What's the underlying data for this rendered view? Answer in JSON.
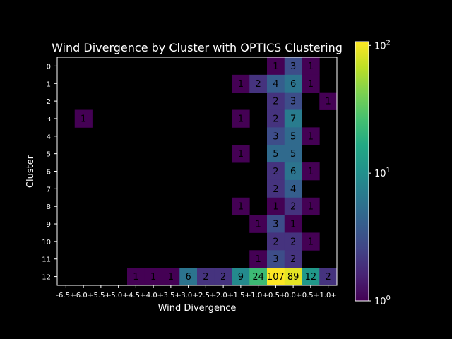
{
  "chart_data": {
    "type": "heatmap",
    "title": "Wind Divergence by Cluster with OPTICS Clustering",
    "xlabel": "Wind Divergence",
    "ylabel": "Cluster",
    "x_categories": [
      "-6.5+",
      "-6.0+",
      "-5.5+",
      "-5.0+",
      "-4.5+",
      "-4.0+",
      "-3.5+",
      "-3.0+",
      "-2.5+",
      "-2.0+",
      "-1.5+",
      "-1.0+",
      "-0.5+",
      "0.0+",
      "0.5+",
      "1.0+"
    ],
    "y_categories": [
      "0",
      "1",
      "2",
      "3",
      "4",
      "5",
      "6",
      "7",
      "8",
      "9",
      "10",
      "11",
      "12"
    ],
    "cells": [
      {
        "y": "0",
        "x": "-0.5+",
        "v": 1
      },
      {
        "y": "0",
        "x": "0.0+",
        "v": 3
      },
      {
        "y": "0",
        "x": "0.5+",
        "v": 1
      },
      {
        "y": "1",
        "x": "-1.5+",
        "v": 1
      },
      {
        "y": "1",
        "x": "-1.0+",
        "v": 2
      },
      {
        "y": "1",
        "x": "-0.5+",
        "v": 4
      },
      {
        "y": "1",
        "x": "0.0+",
        "v": 6
      },
      {
        "y": "1",
        "x": "0.5+",
        "v": 1
      },
      {
        "y": "2",
        "x": "-0.5+",
        "v": 2
      },
      {
        "y": "2",
        "x": "0.0+",
        "v": 3
      },
      {
        "y": "2",
        "x": "1.0+",
        "v": 1
      },
      {
        "y": "3",
        "x": "-6.0+",
        "v": 1
      },
      {
        "y": "3",
        "x": "-1.5+",
        "v": 1
      },
      {
        "y": "3",
        "x": "-0.5+",
        "v": 2
      },
      {
        "y": "3",
        "x": "0.0+",
        "v": 7
      },
      {
        "y": "4",
        "x": "-0.5+",
        "v": 3
      },
      {
        "y": "4",
        "x": "0.0+",
        "v": 5
      },
      {
        "y": "4",
        "x": "0.5+",
        "v": 1
      },
      {
        "y": "5",
        "x": "-1.5+",
        "v": 1
      },
      {
        "y": "5",
        "x": "-0.5+",
        "v": 5
      },
      {
        "y": "5",
        "x": "0.0+",
        "v": 5
      },
      {
        "y": "6",
        "x": "-0.5+",
        "v": 2
      },
      {
        "y": "6",
        "x": "0.0+",
        "v": 6
      },
      {
        "y": "6",
        "x": "0.5+",
        "v": 1
      },
      {
        "y": "7",
        "x": "-0.5+",
        "v": 2
      },
      {
        "y": "7",
        "x": "0.0+",
        "v": 4
      },
      {
        "y": "8",
        "x": "-1.5+",
        "v": 1
      },
      {
        "y": "8",
        "x": "-0.5+",
        "v": 1
      },
      {
        "y": "8",
        "x": "0.0+",
        "v": 2
      },
      {
        "y": "8",
        "x": "0.5+",
        "v": 1
      },
      {
        "y": "9",
        "x": "-1.0+",
        "v": 1
      },
      {
        "y": "9",
        "x": "-0.5+",
        "v": 3
      },
      {
        "y": "9",
        "x": "0.0+",
        "v": 1
      },
      {
        "y": "10",
        "x": "-0.5+",
        "v": 2
      },
      {
        "y": "10",
        "x": "0.0+",
        "v": 2
      },
      {
        "y": "10",
        "x": "0.5+",
        "v": 1
      },
      {
        "y": "11",
        "x": "-1.0+",
        "v": 1
      },
      {
        "y": "11",
        "x": "-0.5+",
        "v": 3
      },
      {
        "y": "11",
        "x": "0.0+",
        "v": 2
      },
      {
        "y": "12",
        "x": "-4.5+",
        "v": 1
      },
      {
        "y": "12",
        "x": "-4.0+",
        "v": 1
      },
      {
        "y": "12",
        "x": "-3.5+",
        "v": 1
      },
      {
        "y": "12",
        "x": "-3.0+",
        "v": 6
      },
      {
        "y": "12",
        "x": "-2.5+",
        "v": 2
      },
      {
        "y": "12",
        "x": "-2.0+",
        "v": 2
      },
      {
        "y": "12",
        "x": "-1.5+",
        "v": 9
      },
      {
        "y": "12",
        "x": "-1.0+",
        "v": 24
      },
      {
        "y": "12",
        "x": "-0.5+",
        "v": 107
      },
      {
        "y": "12",
        "x": "0.0+",
        "v": 89
      },
      {
        "y": "12",
        "x": "0.5+",
        "v": 12
      },
      {
        "y": "12",
        "x": "1.0+",
        "v": 2
      }
    ],
    "colorscale": "viridis",
    "color_scale_type": "log",
    "color_range": [
      1,
      107
    ],
    "colorbar_ticks": [
      {
        "value": 1,
        "base": "10",
        "exp": "0"
      },
      {
        "value": 10,
        "base": "10",
        "exp": "1"
      },
      {
        "value": 100,
        "base": "10",
        "exp": "2"
      }
    ],
    "colors": {
      "background": "#000000",
      "text": "#ffffff",
      "cell_text": "#000000"
    }
  }
}
